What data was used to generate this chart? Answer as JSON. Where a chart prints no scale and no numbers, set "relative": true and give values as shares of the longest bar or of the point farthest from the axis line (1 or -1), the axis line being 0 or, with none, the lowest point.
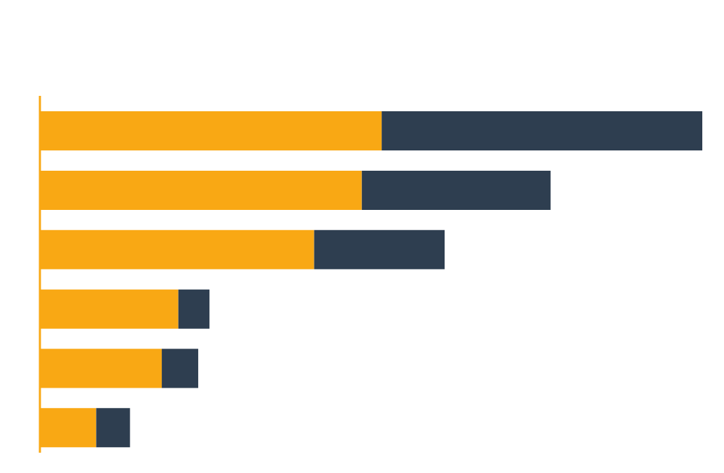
{
  "chart_data": {
    "type": "bar",
    "orientation": "horizontal",
    "stacked": true,
    "relative": true,
    "categories": [
      null,
      null,
      null,
      null,
      null,
      null
    ],
    "series": [
      {
        "color": "#f9a814",
        "values": [
          0.516,
          0.486,
          0.414,
          0.209,
          0.184,
          0.085
        ]
      },
      {
        "color": "#2e3e50",
        "values": [
          0.484,
          0.285,
          0.197,
          0.047,
          0.055,
          0.051
        ]
      }
    ]
  }
}
